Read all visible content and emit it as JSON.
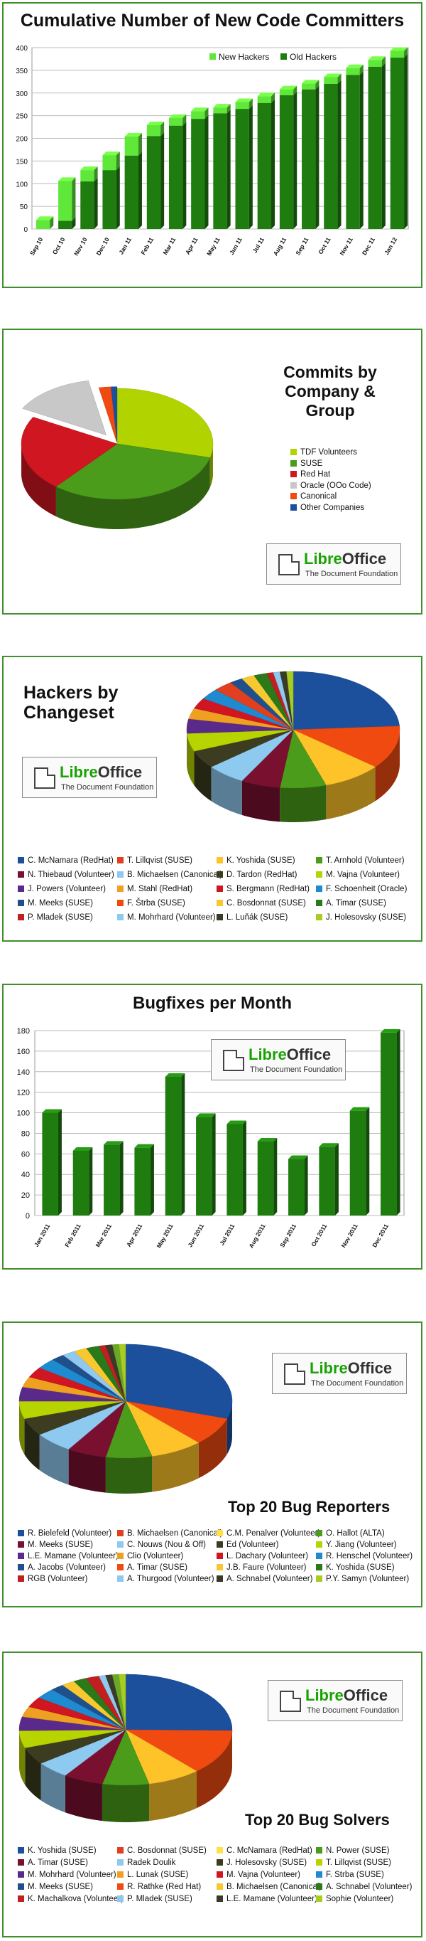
{
  "colors": {
    "dark_green": "#1f7d10",
    "light_green": "#5fe83a",
    "frame_green": "#3f8f2a",
    "lo_green": "#18a303"
  },
  "logo": {
    "name_prefix": "Libre",
    "name_suffix": "Office",
    "tagline": "The Document Foundation"
  },
  "committers": {
    "title": "Cumulative Number of New Code Committers",
    "chart_data": {
      "type": "bar",
      "title": "Cumulative Number of New Code Committers",
      "categories": [
        "Sep 10",
        "Oct 10",
        "Nov 10",
        "Dec 10",
        "Jan 11",
        "Feb 11",
        "Mar 11",
        "Apr 11",
        "May 11",
        "Jun 11",
        "Jul 11",
        "Aug 11",
        "Sep 11",
        "Oct 11",
        "Nov 11",
        "Dec 11",
        "Jan 12"
      ],
      "series": [
        {
          "name": "Old Hackers",
          "values": [
            0,
            18,
            105,
            130,
            162,
            205,
            228,
            243,
            255,
            265,
            278,
            295,
            308,
            320,
            340,
            358,
            378
          ]
        },
        {
          "name": "New Hackers",
          "values": [
            20,
            88,
            25,
            33,
            42,
            24,
            17,
            17,
            13,
            15,
            15,
            13,
            13,
            15,
            15,
            15,
            15
          ]
        }
      ],
      "ylim": [
        0,
        400
      ],
      "yticks": [
        0,
        50,
        100,
        150,
        200,
        250,
        300,
        350,
        400
      ],
      "legend": "top-right",
      "grid": true
    }
  },
  "company": {
    "title_lines": [
      "Commits by",
      "Company &",
      "Group"
    ],
    "chart_data": {
      "type": "pie",
      "title": "Commits by Company & Group",
      "slices": [
        {
          "label": "TDF Volunteers",
          "value": 29,
          "color": "#b1d400"
        },
        {
          "label": "SUSE",
          "value": 32,
          "color": "#4a9c1a"
        },
        {
          "label": "Red Hat",
          "value": 22,
          "color": "#d01620"
        },
        {
          "label": "Oracle (OOo Code)",
          "value": 14,
          "color": "#c8c8c8"
        },
        {
          "label": "Canonical",
          "value": 2,
          "color": "#f04a10"
        },
        {
          "label": "Other Companies",
          "value": 1,
          "color": "#1c4f9c"
        }
      ]
    }
  },
  "hackers": {
    "title_lines": [
      "Hackers by",
      "Changeset"
    ],
    "chart_data": {
      "type": "pie",
      "title": "Hackers by Changeset",
      "slices": [
        {
          "label": "C. McNamara (RedHat)",
          "value": 24,
          "color": "#1c4f9c"
        },
        {
          "label": "F. Štrba (SUSE)",
          "value": 12,
          "color": "#f04a10"
        },
        {
          "label": "K. Yoshida (SUSE)",
          "value": 9,
          "color": "#ffc32a"
        },
        {
          "label": "T. Arnhold (Volunteer)",
          "value": 7,
          "color": "#4a9c1a"
        },
        {
          "label": "N. Thiebaud (Volunteer)",
          "value": 6,
          "color": "#7a1030"
        },
        {
          "label": "B. Michaelsen (Canonical)",
          "value": 6,
          "color": "#8ec9f0"
        },
        {
          "label": "D. Tardon (RedHat)",
          "value": 5,
          "color": "#3c3c20"
        },
        {
          "label": "M. Vajna (Volunteer)",
          "value": 5,
          "color": "#b8d400"
        },
        {
          "label": "J. Powers (Volunteer)",
          "value": 4,
          "color": "#5a2a8a"
        },
        {
          "label": "M. Stahl (RedHat)",
          "value": 3,
          "color": "#f0a020"
        },
        {
          "label": "S. Bergmann (RedHat)",
          "value": 3,
          "color": "#d01620"
        },
        {
          "label": "F. Schoenheit (Oracle)",
          "value": 3,
          "color": "#1e8ad0"
        },
        {
          "label": "T. Lillqvist (SUSE)",
          "value": 3,
          "color": "#e04020"
        },
        {
          "label": "M. Meeks (SUSE)",
          "value": 2,
          "color": "#20508c"
        },
        {
          "label": "C. Bosdonnat (SUSE)",
          "value": 2,
          "color": "#f8c830"
        },
        {
          "label": "A. Timar (SUSE)",
          "value": 2,
          "color": "#2a7a1a"
        },
        {
          "label": "P. Mladek (SUSE)",
          "value": 1,
          "color": "#c02020"
        },
        {
          "label": "M. Mohrhard (Volunteer)",
          "value": 1,
          "color": "#90c8f0"
        },
        {
          "label": "L. Luňák (SUSE)",
          "value": 1,
          "color": "#3a3a28"
        },
        {
          "label": "J. Holesovsky (SUSE)",
          "value": 1,
          "color": "#a8cc20"
        }
      ],
      "legend_order": [
        [
          "C. McNamara (RedHat)",
          "#1c4f9c"
        ],
        [
          "T. Lillqvist (SUSE)",
          "#e04020"
        ],
        [
          "K. Yoshida (SUSE)",
          "#ffc32a"
        ],
        [
          "T. Arnhold (Volunteer)",
          "#4a9c1a"
        ],
        [
          "N. Thiebaud (Volunteer)",
          "#7a1030"
        ],
        [
          "B. Michaelsen (Canonical)",
          "#8ec9f0"
        ],
        [
          "D. Tardon (RedHat)",
          "#3c3c20"
        ],
        [
          "M. Vajna (Volunteer)",
          "#b8d400"
        ],
        [
          "J. Powers (Volunteer)",
          "#5a2a8a"
        ],
        [
          "M. Stahl (RedHat)",
          "#f0a020"
        ],
        [
          "S. Bergmann (RedHat)",
          "#d01620"
        ],
        [
          "F. Schoenheit (Oracle)",
          "#1e8ad0"
        ],
        [
          "M. Meeks (SUSE)",
          "#20508c"
        ],
        [
          "F. Štrba (SUSE)",
          "#f04a10"
        ],
        [
          "C. Bosdonnat (SUSE)",
          "#f8c830"
        ],
        [
          "A. Timar (SUSE)",
          "#2a7a1a"
        ],
        [
          "P. Mladek (SUSE)",
          "#c02020"
        ],
        [
          "M. Mohrhard (Volunteer)",
          "#90c8f0"
        ],
        [
          "L. Luňák (SUSE)",
          "#3a3a28"
        ],
        [
          "J. Holesovsky (SUSE)",
          "#a8cc20"
        ]
      ]
    }
  },
  "bugfixes": {
    "title": "Bugfixes per Month",
    "chart_data": {
      "type": "bar",
      "title": "Bugfixes per Month",
      "categories": [
        "Jan 2011",
        "Feb 2011",
        "Mar 2011",
        "Apr 2011",
        "May 2011",
        "Jun 2011",
        "Jul 2011",
        "Aug 2011",
        "Sep 2011",
        "Oct 2011",
        "Nov 2011",
        "Dec 2011"
      ],
      "values": [
        100,
        63,
        69,
        66,
        135,
        96,
        89,
        72,
        55,
        67,
        102,
        178
      ],
      "ylim": [
        0,
        180
      ],
      "yticks": [
        0,
        20,
        40,
        60,
        80,
        100,
        120,
        140,
        160,
        180
      ],
      "grid": true
    }
  },
  "reporters": {
    "title": "Top 20 Bug Reporters",
    "chart_data": {
      "type": "pie",
      "title": "Top 20 Bug Reporters",
      "slices": [
        {
          "label": "R. Bielefeld (Volunteer)",
          "value": 30,
          "color": "#1c4f9c"
        },
        {
          "label": "L.E. Mamane (Volunteer)",
          "value": 8,
          "color": "#f04a10"
        },
        {
          "label": "Clio (Volunteer)",
          "value": 8,
          "color": "#ffc32a"
        },
        {
          "label": "Y. Jiang (Volunteer)",
          "value": 7,
          "color": "#4a9c1a"
        },
        {
          "label": "M. Meeks (SUSE)",
          "value": 6,
          "color": "#7a1030"
        },
        {
          "label": "C. Nouws (Nou & Off)",
          "value": 6,
          "color": "#8ec9f0"
        },
        {
          "label": "Ed (Volunteer)",
          "value": 5,
          "color": "#3c3c20"
        },
        {
          "label": "C.M. Penalver (Volunteer)",
          "value": 5,
          "color": "#b8d400"
        },
        {
          "label": "M. Mohrhard (Volunteer)",
          "value": 4,
          "color": "#5a2a8a"
        },
        {
          "label": "A. Timar (SUSE)",
          "value": 3,
          "color": "#f0a020"
        },
        {
          "label": "B. Michaelsen (Canonical)",
          "value": 3,
          "color": "#d01620"
        },
        {
          "label": "R. Henschel (Volunteer)",
          "value": 3,
          "color": "#1e8ad0"
        },
        {
          "label": "A. Jacobs (Volunteer)",
          "value": 2,
          "color": "#20508c"
        },
        {
          "label": "A. Thurgood (Volunteer)",
          "value": 2,
          "color": "#90c8f0"
        },
        {
          "label": "J.B. Faure (Volunteer)",
          "value": 2,
          "color": "#f8c830"
        },
        {
          "label": "K. Yoshida (SUSE)",
          "value": 2,
          "color": "#2a7a1a"
        },
        {
          "label": "RGB (Volunteer)",
          "value": 1,
          "color": "#c02020"
        },
        {
          "label": "A. Schnabel (Volunteer)",
          "value": 1,
          "color": "#3a3a28"
        },
        {
          "label": "O. Hallot (ALTA)",
          "value": 1,
          "color": "#6aa828"
        },
        {
          "label": "P.Y. Samyn (Volunteer)",
          "value": 1,
          "color": "#a8cc20"
        }
      ],
      "legend_order": [
        [
          "R. Bielefeld (Volunteer)",
          "#1c4f9c"
        ],
        [
          "B. Michaelsen (Canonical)",
          "#e04020"
        ],
        [
          "C.M. Penalver (Volunteer)",
          "#ffe14a"
        ],
        [
          "O. Hallot (ALTA)",
          "#4a9c1a"
        ],
        [
          "M. Meeks (SUSE)",
          "#7a1030"
        ],
        [
          "C. Nouws (Nou & Off)",
          "#8ec9f0"
        ],
        [
          "Ed (Volunteer)",
          "#3c3c20"
        ],
        [
          "Y. Jiang (Volunteer)",
          "#b8d400"
        ],
        [
          "L.E. Mamane (Volunteer)",
          "#5a2a8a"
        ],
        [
          "Clio (Volunteer)",
          "#f0a020"
        ],
        [
          "L. Dachary (Volunteer)",
          "#d01620"
        ],
        [
          "R. Henschel (Volunteer)",
          "#1e8ad0"
        ],
        [
          "A. Jacobs (Volunteer)",
          "#20508c"
        ],
        [
          "A. Timar (SUSE)",
          "#f04a10"
        ],
        [
          "J.B. Faure (Volunteer)",
          "#f8c830"
        ],
        [
          "K. Yoshida (SUSE)",
          "#2a7a1a"
        ],
        [
          "RGB (Volunteer)",
          "#c02020"
        ],
        [
          "A. Thurgood (Volunteer)",
          "#90c8f0"
        ],
        [
          "A. Schnabel (Volunteer)",
          "#3a3a28"
        ],
        [
          "P.Y. Samyn (Volunteer)",
          "#a8cc20"
        ]
      ]
    }
  },
  "solvers": {
    "title": "Top 20 Bug Solvers",
    "chart_data": {
      "type": "pie",
      "title": "Top 20 Bug Solvers",
      "slices": [
        {
          "label": "K. Yoshida (SUSE)",
          "value": 25,
          "color": "#1c4f9c"
        },
        {
          "label": "C. Bosdonnat (SUSE)",
          "value": 13,
          "color": "#f04a10"
        },
        {
          "label": "J. Holesovsky (SUSE)",
          "value": 8,
          "color": "#ffc32a"
        },
        {
          "label": "N. Power (SUSE)",
          "value": 7,
          "color": "#4a9c1a"
        },
        {
          "label": "M. Vajna (Volunteer)",
          "value": 6,
          "color": "#7a1030"
        },
        {
          "label": "Radek Doulik",
          "value": 5,
          "color": "#8ec9f0"
        },
        {
          "label": "M. Mohrhard (Volunteer)",
          "value": 5,
          "color": "#3c3c20"
        },
        {
          "label": "C. McNamara (RedHat)",
          "value": 5,
          "color": "#b8d400"
        },
        {
          "label": "A. Timar (SUSE)",
          "value": 4,
          "color": "#5a2a8a"
        },
        {
          "label": "L. Lunak (SUSE)",
          "value": 3,
          "color": "#f0a020"
        },
        {
          "label": "M. Meeks (SUSE)",
          "value": 3,
          "color": "#d01620"
        },
        {
          "label": "F. Strba (SUSE)",
          "value": 3,
          "color": "#1e8ad0"
        },
        {
          "label": "R. Rathke (Red Hat)",
          "value": 2,
          "color": "#20508c"
        },
        {
          "label": "B. Michaelsen (Canonical)",
          "value": 2,
          "color": "#f8c830"
        },
        {
          "label": "T. Lillqvist (SUSE)",
          "value": 2,
          "color": "#2a7a1a"
        },
        {
          "label": "K. Machalkova (Volunteer)",
          "value": 2,
          "color": "#c02020"
        },
        {
          "label": "P. Mladek (SUSE)",
          "value": 1,
          "color": "#90c8f0"
        },
        {
          "label": "L.E. Mamane (Volunteer)",
          "value": 1,
          "color": "#3a3a28"
        },
        {
          "label": "A. Schnabel (Volunteer)",
          "value": 1,
          "color": "#6aa828"
        },
        {
          "label": "Sophie (Volunteer)",
          "value": 1,
          "color": "#a8cc20"
        }
      ],
      "legend_order": [
        [
          "K. Yoshida (SUSE)",
          "#1c4f9c"
        ],
        [
          "C. Bosdonnat (SUSE)",
          "#e04020"
        ],
        [
          "C. McNamara (RedHat)",
          "#ffe14a"
        ],
        [
          "N. Power (SUSE)",
          "#4a9c1a"
        ],
        [
          "A. Timar (SUSE)",
          "#7a1030"
        ],
        [
          "Radek Doulik",
          "#8ec9f0"
        ],
        [
          "J. Holesovsky (SUSE)",
          "#3c3c20"
        ],
        [
          "T. Lillqvist (SUSE)",
          "#b8d400"
        ],
        [
          "M. Mohrhard (Volunteer)",
          "#5a2a8a"
        ],
        [
          "L. Lunak (SUSE)",
          "#f0a020"
        ],
        [
          "M. Vajna (Volunteer)",
          "#d01620"
        ],
        [
          "F. Strba (SUSE)",
          "#1e8ad0"
        ],
        [
          "M. Meeks (SUSE)",
          "#20508c"
        ],
        [
          "R. Rathke (Red Hat)",
          "#f04a10"
        ],
        [
          "B. Michaelsen (Canonical)",
          "#f8c830"
        ],
        [
          "A. Schnabel (Volunteer)",
          "#2a7a1a"
        ],
        [
          "K. Machalkova (Volunteer)",
          "#c02020"
        ],
        [
          "P. Mladek (SUSE)",
          "#90c8f0"
        ],
        [
          "L.E. Mamane (Volunteer)",
          "#3a3a28"
        ],
        [
          "Sophie (Volunteer)",
          "#a8cc20"
        ]
      ]
    }
  }
}
